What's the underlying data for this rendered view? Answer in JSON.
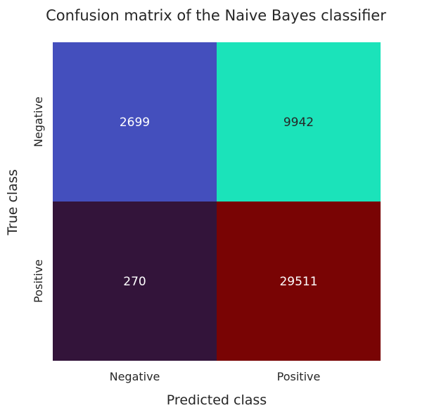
{
  "chart_data": {
    "type": "heatmap",
    "title": "Confusion matrix of the Naive Bayes classifier",
    "xlabel": "Predicted class",
    "ylabel": "True class",
    "x_categories": [
      "Negative",
      "Positive"
    ],
    "y_categories": [
      "Negative",
      "Positive"
    ],
    "values": [
      [
        2699,
        9942
      ],
      [
        270,
        29511
      ]
    ],
    "cell_colors": [
      [
        "#444fbd",
        "#1be3ba"
      ],
      [
        "#33143a",
        "#790404"
      ]
    ],
    "annotation_colors": [
      [
        "#ffffff",
        "#262626"
      ],
      [
        "#ffffff",
        "#ffffff"
      ]
    ],
    "colorbar": false,
    "grid": false
  }
}
